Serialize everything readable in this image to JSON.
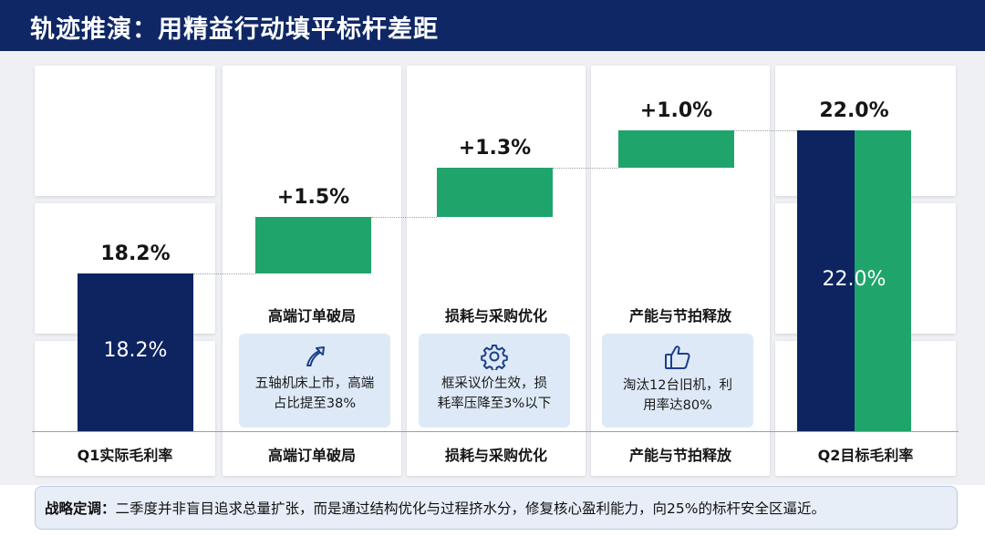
{
  "title": "轨迹推演：用精益行动填平标杆差距",
  "chart_data": {
    "type": "bar",
    "subtype": "waterfall",
    "unit": "%",
    "categories": [
      "Q1实际毛利率",
      "高端订单破局",
      "损耗与采购优化",
      "产能与节拍释放",
      "Q2目标毛利率"
    ],
    "steps": [
      {
        "name": "Q1实际毛利率",
        "value": 18.2,
        "kind": "total",
        "top_label": "18.2%",
        "inner_label": "18.2%",
        "color": "#0d2461"
      },
      {
        "name": "高端订单破局",
        "value": 1.5,
        "kind": "delta",
        "top_label": "+1.5%",
        "color": "#1fa56b"
      },
      {
        "name": "损耗与采购优化",
        "value": 1.3,
        "kind": "delta",
        "top_label": "+1.3%",
        "color": "#1fa56b"
      },
      {
        "name": "产能与节拍释放",
        "value": 1.0,
        "kind": "delta",
        "top_label": "+1.0%",
        "color": "#1fa56b"
      },
      {
        "name": "Q2目标毛利率",
        "value": 22.0,
        "kind": "total",
        "top_label": "22.0%",
        "inner_label": "22.0%",
        "color": "#1fa56b",
        "left_color": "#0d2461"
      }
    ],
    "ylim": [
      14.0,
      22.6
    ]
  },
  "drivers": [
    {
      "heading": "高端订单破局",
      "icon": "arrow-up-icon",
      "note": [
        "五轴机床上市，高端",
        "占比提至38%"
      ]
    },
    {
      "heading": "损耗与采购优化",
      "icon": "gear-icon",
      "note": [
        "框采议价生效，损",
        "耗率压降至3%以下"
      ]
    },
    {
      "heading": "产能与节拍释放",
      "icon": "thumbs-up-icon",
      "note": [
        "淘汰12台旧机，利",
        "用率达80%"
      ]
    }
  ],
  "footer": {
    "lead": "战略定调：",
    "text": "二季度并非盲目追求总量扩张，而是通过结构优化与过程挤水分，修复核心盈利能力，向25%的标杆安全区逼近。"
  },
  "colors": {
    "navy": "#0d2461",
    "green": "#1fa56b",
    "header_bg": "#0f2765",
    "card_bg": "#dde9f6"
  }
}
